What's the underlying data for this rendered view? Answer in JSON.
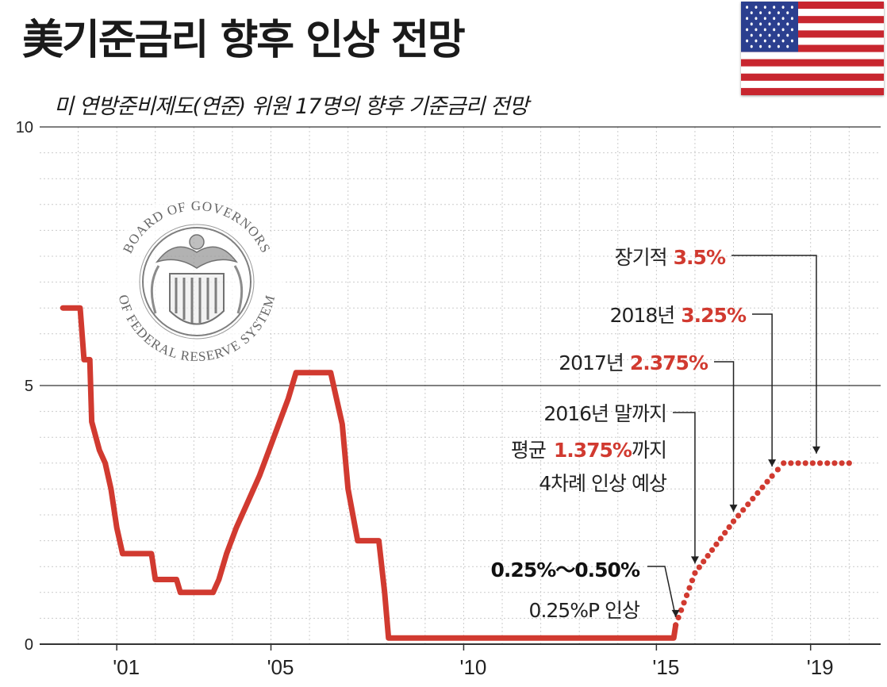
{
  "header": {
    "title": "美기준금리 향후 인상 전망",
    "subtitle": "미 연방준비제도(연준) 위원 17명의 향후 기준금리 전망"
  },
  "flag": {
    "icon": "us-flag-icon"
  },
  "seal": {
    "icon": "federal-reserve-seal-icon",
    "text_top": "BOARD OF GOVERNORS",
    "text_bottom": "OF FEDERAL RESERVE SYSTEM"
  },
  "colors": {
    "line": "#d13a30",
    "accent_text": "#d13a30",
    "grid": "#cccccc"
  },
  "chart_data": {
    "type": "line",
    "title": "",
    "ylim": [
      0,
      10
    ],
    "y_ticks": [
      "0",
      "5",
      "10"
    ],
    "x_ticks": [
      {
        "label": "'01",
        "x": 2001
      },
      {
        "label": "'05",
        "x": 2005
      },
      {
        "label": "'10",
        "x": 2010
      },
      {
        "label": "'15",
        "x": 2015
      },
      {
        "label": "'19",
        "x": 2019
      }
    ],
    "grid": "dotted vertical yearly, horizontal at 0.5 steps",
    "series": [
      {
        "style": "solid",
        "points": [
          [
            1999.6,
            6.5
          ],
          [
            2000.05,
            6.5
          ],
          [
            2000.15,
            5.5
          ],
          [
            2000.3,
            5.5
          ],
          [
            2000.35,
            4.3
          ],
          [
            2000.55,
            3.75
          ],
          [
            2000.7,
            3.5
          ],
          [
            2000.85,
            3.0
          ],
          [
            2001.0,
            2.25
          ],
          [
            2001.15,
            1.75
          ],
          [
            2001.9,
            1.75
          ],
          [
            2002.0,
            1.25
          ],
          [
            2002.55,
            1.25
          ],
          [
            2002.65,
            1.0
          ],
          [
            2003.5,
            1.0
          ],
          [
            2003.65,
            1.25
          ],
          [
            2003.85,
            1.75
          ],
          [
            2004.1,
            2.25
          ],
          [
            2004.4,
            2.75
          ],
          [
            2004.7,
            3.25
          ],
          [
            2004.95,
            3.75
          ],
          [
            2005.2,
            4.25
          ],
          [
            2005.45,
            4.75
          ],
          [
            2005.65,
            5.25
          ],
          [
            2006.55,
            5.25
          ],
          [
            2006.7,
            4.75
          ],
          [
            2006.85,
            4.25
          ],
          [
            2007.0,
            3.0
          ],
          [
            2007.25,
            2.0
          ],
          [
            2007.8,
            2.0
          ],
          [
            2007.95,
            1.0
          ],
          [
            2008.05,
            0.12
          ],
          [
            2015.45,
            0.12
          ],
          [
            2015.5,
            0.37
          ]
        ]
      },
      {
        "style": "dotted",
        "points": [
          [
            2015.5,
            0.37
          ],
          [
            2016.0,
            1.375
          ],
          [
            2017.0,
            2.375
          ],
          [
            2018.0,
            3.25
          ],
          [
            2018.3,
            3.5
          ],
          [
            2020.0,
            3.5
          ]
        ]
      }
    ],
    "annotations": [
      {
        "label": "장기적",
        "value": "3.5%"
      },
      {
        "label": "2018년",
        "value": "3.25%"
      },
      {
        "label": "2017년",
        "value": "2.375%"
      },
      {
        "lines": [
          "2016년 말까지",
          "평균",
          "1.375%",
          "까지",
          "4차례 인상 예상"
        ]
      },
      {
        "lines": [
          "0.25%～0.50%",
          "0.25%P 인상"
        ]
      }
    ]
  }
}
